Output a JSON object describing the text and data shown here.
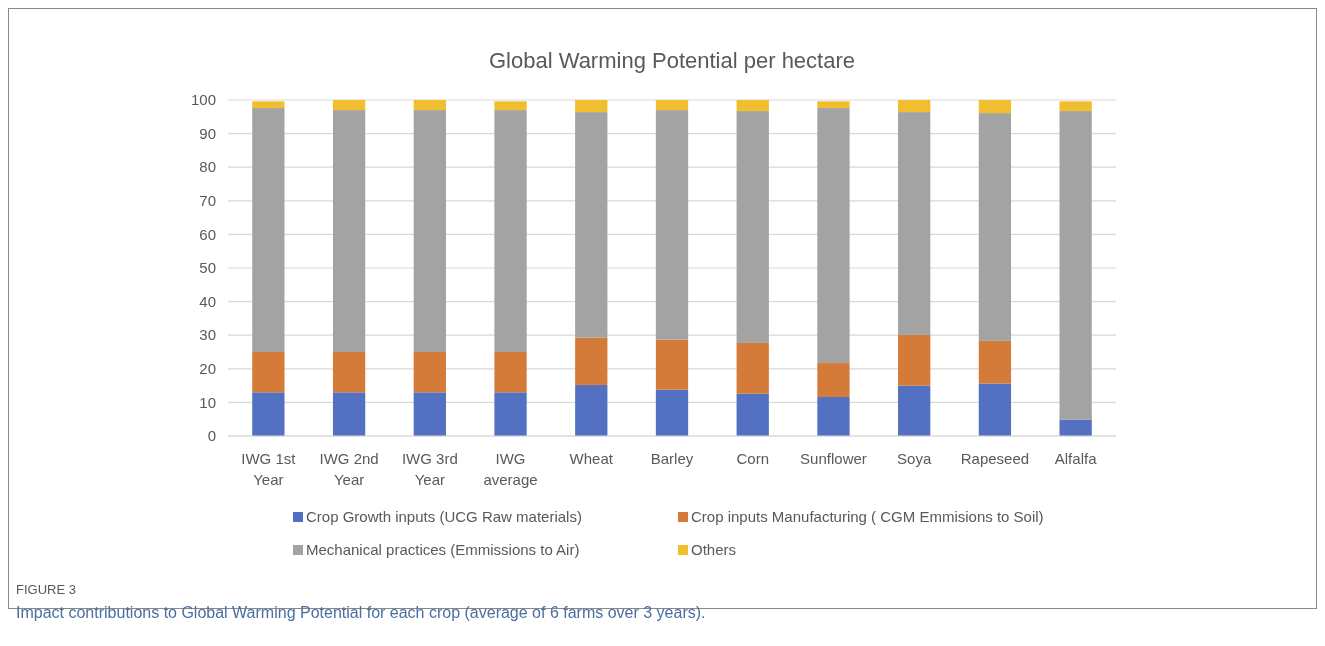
{
  "chart_data": {
    "type": "bar",
    "title": "Global Warming Potential per  hectare",
    "stacked": true,
    "categories": [
      "IWG 1st Year",
      "IWG 2nd Year",
      "IWG 3rd Year",
      "IWG average",
      "Wheat",
      "Barley",
      "Corn",
      "Sunflower",
      "Soya",
      "Rapeseed",
      "Alfalfa"
    ],
    "series": [
      {
        "name": "Crop Growth inputs (UCG Raw materials)",
        "color": "#5470c1",
        "values": [
          13,
          13,
          13,
          13,
          15.2,
          13.8,
          12.6,
          11.6,
          15,
          15.6,
          4.9
        ]
      },
      {
        "name": "Crop inputs Manufacturing ( CGM Emmisions to Soil)",
        "color": "#d57b39",
        "values": [
          12,
          12,
          12,
          12,
          14.1,
          14.9,
          15.1,
          10.1,
          15.1,
          12.7,
          0
        ]
      },
      {
        "name": "Mechanical practices (Emmissions to Air)",
        "color": "#a3a3a3",
        "values": [
          72.6,
          72,
          72,
          72,
          67.1,
          68.3,
          69,
          75.9,
          66.3,
          67.8,
          91.8
        ]
      },
      {
        "name": "Others",
        "color": "#f0be2e",
        "values": [
          2,
          3,
          3,
          2.6,
          3.6,
          3,
          3.3,
          2,
          3.6,
          3.9,
          2.9
        ]
      }
    ],
    "ylim": [
      0,
      100
    ],
    "yticks": [
      0,
      10,
      20,
      30,
      40,
      50,
      60,
      70,
      80,
      90,
      100
    ],
    "grid": "y",
    "legend": "bottom",
    "annotations": [
      "FIGURE 3",
      "Impact contributions to Global Warming Potential for each crop (average of 6 farms over 3 years)."
    ]
  }
}
